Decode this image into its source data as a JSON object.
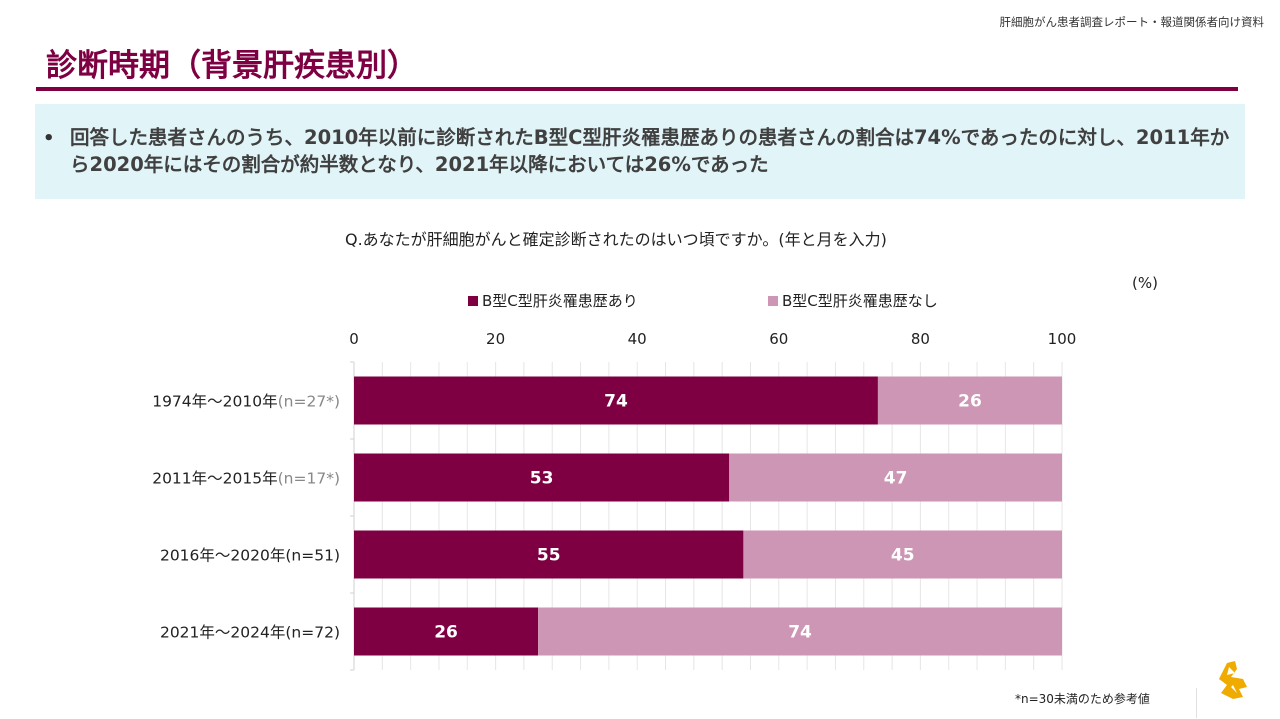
{
  "header": {
    "doc_label": "肝細胞がん患者調査レポート・報道関係者向け資料",
    "title": "診断時期（背景肝疾患別）"
  },
  "summary": {
    "bullet": "•",
    "text": "回答した患者さんのうち、2010年以前に診断されたB型C型肝炎罹患歴ありの患者さんの割合は74%であったのに対し、2011年から2020年にはその割合が約半数となり、2021年以降においては26%であった"
  },
  "question": "Q.あなたが肝細胞がんと確定診断されたのはいつ頃ですか。(年と月を入力)",
  "footnote": "*n=30未満のため参考値",
  "logo": {
    "icon": "company-logo-icon",
    "color": "#F0AB00"
  },
  "colors": {
    "accent": "#7E0042",
    "series1": "#7E0042",
    "series2": "#CC96B4",
    "summary_bg": "#E1F4F8"
  },
  "chart_data": {
    "type": "bar",
    "orientation": "horizontal",
    "stacked": true,
    "title": "",
    "unit_label": "(%)",
    "xlabel": "",
    "ylabel": "",
    "xlim": [
      0,
      100
    ],
    "xticks": [
      0,
      20,
      40,
      60,
      80,
      100
    ],
    "grid": true,
    "legend_position": "top",
    "categories": [
      {
        "label": "1974年～2010年",
        "n": "(n=27*)",
        "n_muted": true
      },
      {
        "label": "2011年～2015年",
        "n": "(n=17*)",
        "n_muted": true
      },
      {
        "label": "2016年～2020年",
        "n": "(n=51)",
        "n_muted": false
      },
      {
        "label": "2021年～2024年",
        "n": "(n=72)",
        "n_muted": false
      }
    ],
    "series": [
      {
        "name": "B型C型肝炎罹患歴あり",
        "color": "#7E0042",
        "values": [
          74,
          53,
          55,
          26
        ]
      },
      {
        "name": "B型C型肝炎罹患歴なし",
        "color": "#CC96B4",
        "values": [
          26,
          47,
          45,
          74
        ]
      }
    ]
  }
}
